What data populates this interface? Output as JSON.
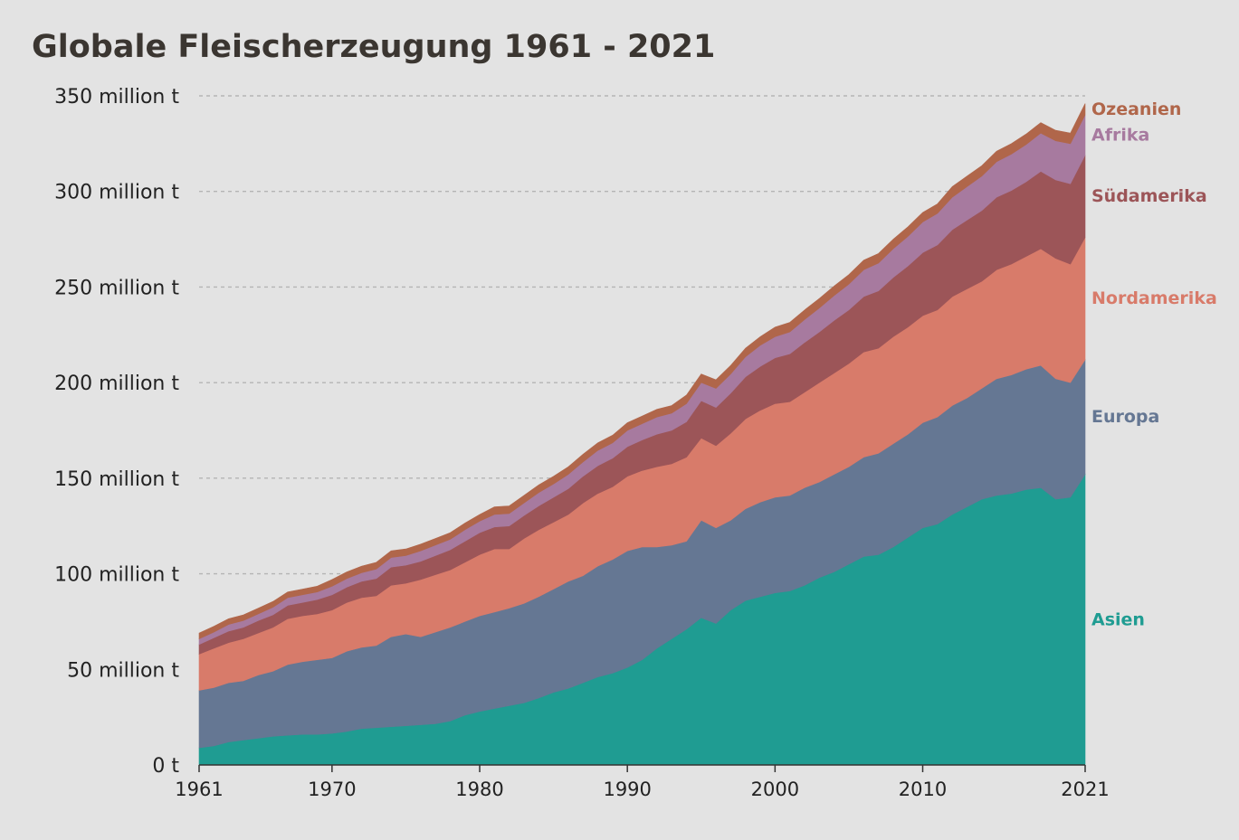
{
  "chart_data": {
    "type": "area",
    "stacked": true,
    "title": "Globale Fleischerzeugung 1961 - 2021",
    "xlabel": "",
    "ylabel": "",
    "xlim": [
      1961,
      2021
    ],
    "ylim": [
      0,
      350
    ],
    "y_ticks": [
      {
        "value": 0,
        "label": "0 t"
      },
      {
        "value": 50,
        "label": "50 million t"
      },
      {
        "value": 100,
        "label": "100 million t"
      },
      {
        "value": 150,
        "label": "150 million t"
      },
      {
        "value": 200,
        "label": "200 million t"
      },
      {
        "value": 250,
        "label": "250 million t"
      },
      {
        "value": 300,
        "label": "300 million t"
      },
      {
        "value": 350,
        "label": "350 million t"
      }
    ],
    "x_ticks": [
      {
        "value": 1961,
        "label": "1961"
      },
      {
        "value": 1970,
        "label": "1970"
      },
      {
        "value": 1980,
        "label": "1980"
      },
      {
        "value": 1990,
        "label": "1990"
      },
      {
        "value": 2000,
        "label": "2000"
      },
      {
        "value": 2010,
        "label": "2010"
      },
      {
        "value": 2021,
        "label": "2021"
      }
    ],
    "grid": true,
    "legend": "direct labels at right end",
    "x": [
      1961,
      1962,
      1963,
      1964,
      1965,
      1966,
      1967,
      1968,
      1969,
      1970,
      1971,
      1972,
      1973,
      1974,
      1975,
      1976,
      1977,
      1978,
      1979,
      1980,
      1981,
      1982,
      1983,
      1984,
      1985,
      1986,
      1987,
      1988,
      1989,
      1990,
      1991,
      1992,
      1993,
      1994,
      1995,
      1996,
      1997,
      1998,
      1999,
      2000,
      2001,
      2002,
      2003,
      2004,
      2005,
      2006,
      2007,
      2008,
      2009,
      2010,
      2011,
      2012,
      2013,
      2014,
      2015,
      2016,
      2017,
      2018,
      2019,
      2020,
      2021
    ],
    "series": [
      {
        "name": "Asien",
        "color": "#1f9c92",
        "values": [
          9,
          10,
          12,
          13,
          14,
          15,
          15.5,
          16,
          16,
          16.5,
          17.5,
          19,
          19.5,
          20,
          20.5,
          21,
          21.5,
          23,
          26,
          28,
          29.5,
          31,
          32.5,
          35,
          38,
          40,
          43,
          46,
          48,
          51,
          55,
          61,
          66,
          71,
          77,
          74,
          81,
          86,
          88,
          90,
          91,
          94,
          98,
          101,
          105,
          109,
          110,
          114,
          119,
          124,
          126,
          131,
          135,
          139,
          141,
          142,
          144,
          145,
          139,
          140,
          152
        ]
      },
      {
        "name": "Europa",
        "color": "#657793",
        "values": [
          30,
          30.5,
          31,
          31,
          33,
          34,
          37,
          38,
          39,
          39.5,
          42,
          42.5,
          43,
          47,
          48,
          46,
          48,
          49,
          49,
          50,
          50.5,
          51,
          52,
          53,
          54,
          56,
          56,
          58,
          59.5,
          61,
          59,
          53,
          49,
          46,
          51,
          50,
          47,
          48,
          49.5,
          50,
          50,
          51,
          50,
          51,
          51,
          52,
          53,
          54,
          54,
          55,
          56,
          57,
          57,
          58,
          61,
          62,
          63,
          64,
          63,
          60,
          60
        ]
      },
      {
        "name": "Nordamerika",
        "color": "#d87b6a",
        "values": [
          19,
          20.5,
          21,
          22,
          22,
          23,
          24,
          24,
          24,
          25,
          25.5,
          26,
          26,
          27,
          26.5,
          30,
          30,
          30,
          31,
          32,
          33,
          31,
          34,
          35,
          35,
          35,
          38,
          38,
          38,
          39,
          40,
          42,
          42.5,
          44,
          43,
          43,
          45.5,
          47,
          48,
          49,
          49,
          50,
          52,
          53,
          54,
          55,
          55,
          56,
          56,
          56,
          56,
          57,
          57,
          56,
          57,
          58,
          59,
          61,
          63,
          62,
          64
        ]
      },
      {
        "name": "Südamerika",
        "color": "#9c5558",
        "values": [
          5,
          5.5,
          6,
          6,
          6.5,
          6.5,
          7,
          7,
          7.5,
          8,
          8,
          8.5,
          9,
          9.5,
          9.5,
          9.5,
          10,
          10.5,
          11,
          11.5,
          11.5,
          12,
          12,
          12.5,
          13,
          13.5,
          14,
          14.5,
          15,
          15.5,
          16,
          17,
          17.5,
          18.5,
          19.5,
          20,
          21,
          22,
          23,
          24,
          25,
          26,
          26.5,
          27.5,
          28,
          29,
          30,
          31,
          32,
          33,
          34,
          35,
          36,
          37,
          38,
          38.5,
          39,
          40.5,
          41,
          42,
          43
        ]
      },
      {
        "name": "Afrika",
        "color": "#a77a9f",
        "values": [
          3,
          3,
          3.5,
          3.5,
          3.5,
          4,
          4,
          4,
          4,
          4.5,
          4.5,
          4.5,
          5,
          5,
          5,
          5.5,
          5.5,
          5.5,
          6,
          6,
          6.5,
          6.5,
          6.5,
          7,
          7,
          7.5,
          7.5,
          8,
          8,
          8.5,
          8.5,
          9,
          9,
          9.5,
          9.5,
          10,
          10,
          10.5,
          11,
          11,
          11.5,
          12,
          12.5,
          13,
          13.5,
          14,
          14.5,
          15,
          15.5,
          16,
          16.5,
          17,
          17.5,
          18,
          18.5,
          19,
          19.5,
          20,
          20.5,
          21,
          21
        ]
      },
      {
        "name": "Ozeanien",
        "color": "#b0664a",
        "values": [
          3,
          3,
          3,
          3,
          3,
          3,
          3,
          3,
          3,
          3.5,
          3.5,
          3.5,
          3.5,
          3.5,
          3.5,
          3.5,
          3.5,
          3.5,
          3.5,
          3.5,
          4,
          4,
          4,
          4,
          4,
          4,
          4,
          4,
          4,
          4,
          4,
          4,
          4,
          4.5,
          4.5,
          4.5,
          4.5,
          4.5,
          4.5,
          5,
          5,
          5,
          5,
          5,
          5,
          5,
          5,
          5,
          5,
          5,
          5,
          5.5,
          5.5,
          5.5,
          5.5,
          5.5,
          5.5,
          5.5,
          5.5,
          5.5,
          6
        ]
      }
    ]
  }
}
